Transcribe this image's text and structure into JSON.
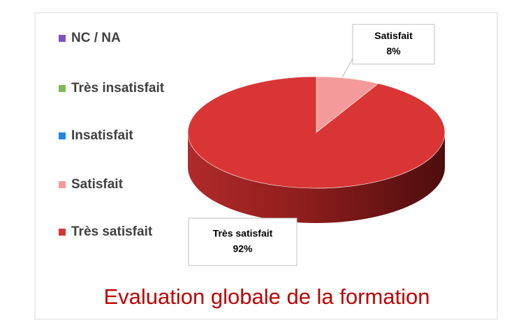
{
  "chart_data": {
    "type": "pie",
    "title": "Evaluation globale de la formation",
    "categories": [
      "NC / NA",
      "Très insatisfait",
      "Insatisfait",
      "Satisfait",
      "Très satisfait"
    ],
    "values": [
      0,
      0,
      0,
      8,
      92
    ],
    "value_labels": [
      null,
      null,
      null,
      "8%",
      "92%"
    ],
    "colors": [
      "#7f4fc0",
      "#7fba52",
      "#1e88e5",
      "#f59a9a",
      "#d93535"
    ],
    "legend": "left"
  }
}
